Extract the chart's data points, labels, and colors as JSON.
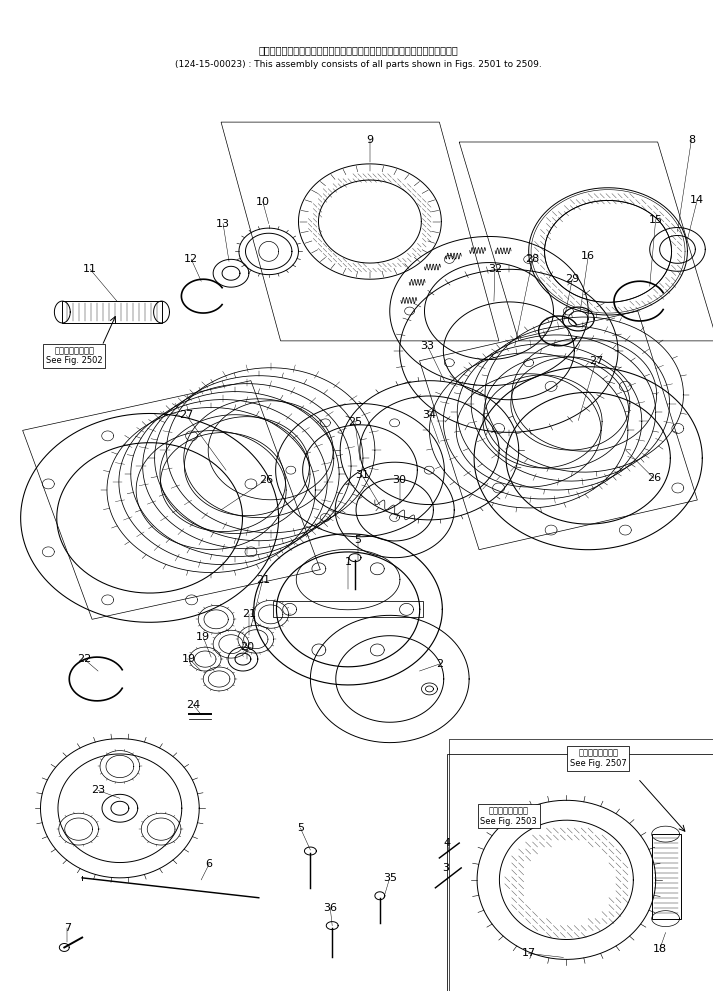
{
  "fig_width": 7.16,
  "fig_height": 9.94,
  "dpi": 100,
  "bg_color": "#ffffff",
  "title_line1": "このアセンブリの構成部品は第２５０１図から第２５０９図まで含みます．",
  "title_line2": "(124-15-00023) : This assembly consists of all parts shown in Figs. 2501 to 2509.",
  "title_fontsize": 7.0,
  "see2502_text": "第２５０２図参照\nSee Fig. 2502",
  "see2507_text": "第２５０７図参照\nSee Fig. 2507",
  "see2503_text": "第２５０３図参照\nSee Fig. 2503",
  "label_fontsize": 8.0,
  "line_color": "#000000",
  "line_width": 0.7
}
